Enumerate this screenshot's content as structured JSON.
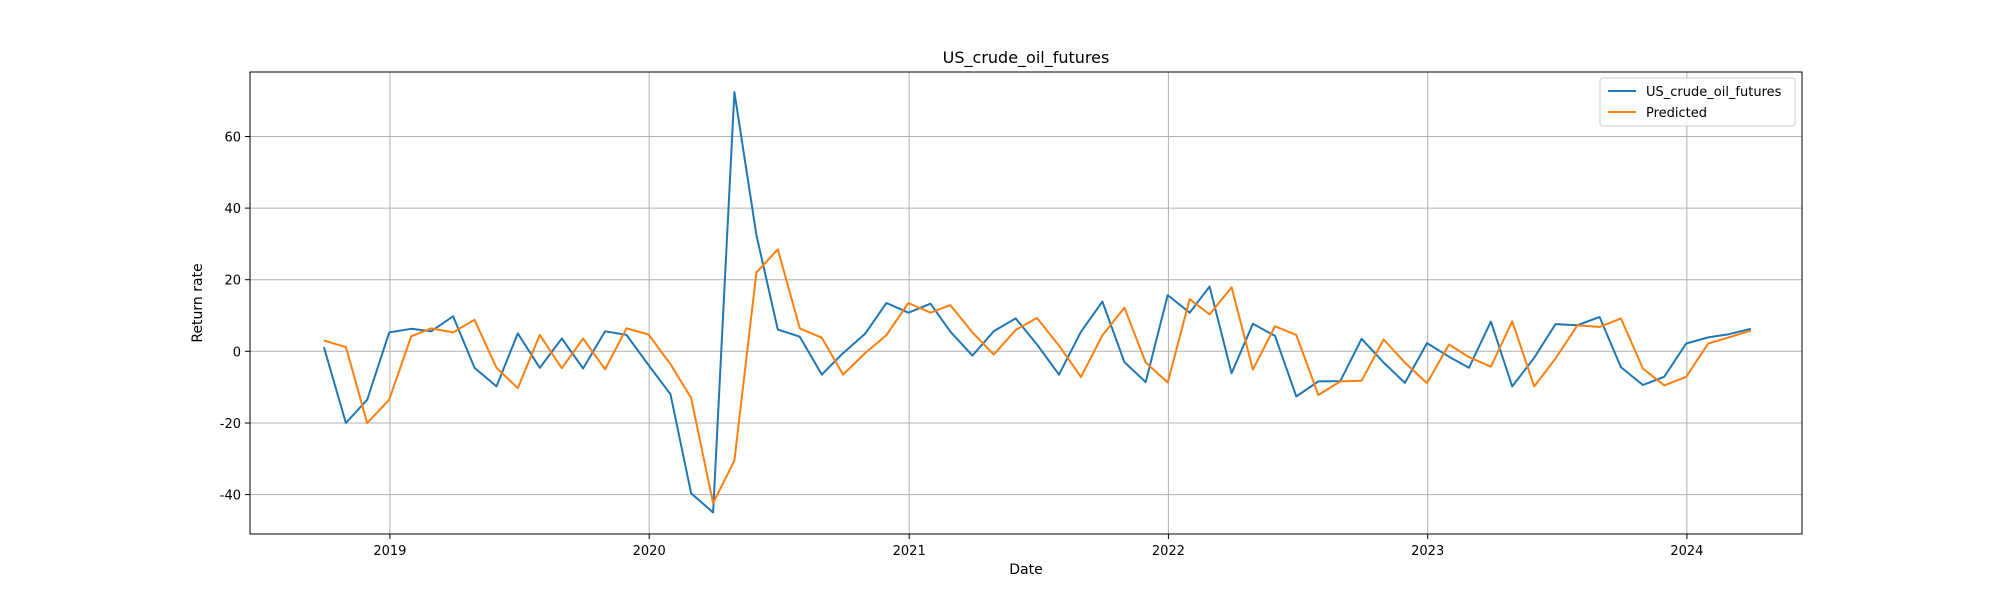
{
  "chart_data": {
    "type": "line",
    "title": "US_crude_oil_futures",
    "xlabel": "Date",
    "ylabel": "Return rate",
    "grid": true,
    "legend_position": "top-right",
    "xlim": [
      "2018-06-18",
      "2024-06-11"
    ],
    "ylim": [
      -51,
      78
    ],
    "x_ticks": [
      {
        "date": "2019-01-01",
        "label": "2019"
      },
      {
        "date": "2020-01-01",
        "label": "2020"
      },
      {
        "date": "2021-01-01",
        "label": "2021"
      },
      {
        "date": "2022-01-01",
        "label": "2022"
      },
      {
        "date": "2023-01-01",
        "label": "2023"
      },
      {
        "date": "2024-01-01",
        "label": "2024"
      }
    ],
    "y_ticks": [
      -40,
      -20,
      0,
      20,
      40,
      60
    ],
    "x": [
      "2018-09-30",
      "2018-10-31",
      "2018-11-30",
      "2018-12-31",
      "2019-01-31",
      "2019-02-28",
      "2019-03-31",
      "2019-04-30",
      "2019-05-31",
      "2019-06-30",
      "2019-07-31",
      "2019-08-31",
      "2019-09-30",
      "2019-10-31",
      "2019-11-30",
      "2019-12-31",
      "2020-01-31",
      "2020-02-29",
      "2020-03-31",
      "2020-04-30",
      "2020-05-31",
      "2020-06-30",
      "2020-07-31",
      "2020-08-31",
      "2020-09-30",
      "2020-10-31",
      "2020-11-30",
      "2020-12-31",
      "2021-01-31",
      "2021-02-28",
      "2021-03-31",
      "2021-04-30",
      "2021-05-31",
      "2021-06-30",
      "2021-07-31",
      "2021-08-31",
      "2021-09-30",
      "2021-10-31",
      "2021-11-30",
      "2021-12-31",
      "2022-01-31",
      "2022-02-28",
      "2022-03-31",
      "2022-04-30",
      "2022-05-31",
      "2022-06-30",
      "2022-07-31",
      "2022-08-31",
      "2022-09-30",
      "2022-10-31",
      "2022-11-30",
      "2022-12-31",
      "2023-01-31",
      "2023-02-28",
      "2023-03-31",
      "2023-04-30",
      "2023-05-31",
      "2023-06-30",
      "2023-07-31",
      "2023-08-31",
      "2023-09-30",
      "2023-10-31",
      "2023-11-30",
      "2023-12-31",
      "2024-01-31",
      "2024-02-29",
      "2024-03-31"
    ],
    "series": [
      {
        "name": "US_crude_oil_futures",
        "color": "#1f77b4",
        "values": [
          1.2,
          -20,
          -13.5,
          5.3,
          6.3,
          5.6,
          9.8,
          -4.6,
          -9.8,
          5.0,
          -4.6,
          3.6,
          -4.8,
          5.6,
          4.6,
          -3.8,
          -12,
          -39.6,
          -45,
          72.4,
          32.5,
          6.1,
          4.1,
          -6.5,
          -0.5,
          4.9,
          13.5,
          10.8,
          13.3,
          5.5,
          -1.2,
          5.6,
          9.2,
          1.9,
          -6.5,
          5.5,
          13.9,
          -3,
          -8.6,
          15.7,
          10.8,
          18.1,
          -6.1,
          7.7,
          4.3,
          -12.6,
          -8.4,
          -8.3,
          3.5,
          -3.1,
          -8.8,
          2.3,
          -1.5,
          -4.6,
          8.3,
          -9.8,
          -1.8,
          7.6,
          7.3,
          9.6,
          -4.4,
          -9.4,
          -7.1,
          2.2,
          3.9,
          4.8,
          6.3
        ]
      },
      {
        "name": "Predicted",
        "color": "#ff7f0e",
        "values": [
          3.0,
          1.2,
          -20,
          -13.5,
          4.2,
          6.4,
          5.3,
          8.8,
          -4.6,
          -10.3,
          4.6,
          -4.7,
          3.6,
          -5.0,
          6.4,
          4.7,
          -3.6,
          -13,
          -42.4,
          -30.5,
          22.0,
          28.5,
          6.4,
          3.8,
          -6.5,
          -0.5,
          4.5,
          13.5,
          10.8,
          12.9,
          5.3,
          -0.9,
          6.0,
          9.3,
          1.6,
          -7.2,
          4.5,
          12.2,
          -3.1,
          -8.7,
          14.6,
          10.3,
          17.9,
          -5.1,
          7.0,
          4.6,
          -12.2,
          -8.4,
          -8.2,
          3.3,
          -3.1,
          -8.9,
          1.9,
          -1.6,
          -4.3,
          8.4,
          -9.8,
          -2.0,
          7.3,
          6.8,
          9.2,
          -4.8,
          -9.5,
          -7.1,
          2.2,
          3.9,
          5.8
        ]
      }
    ]
  }
}
